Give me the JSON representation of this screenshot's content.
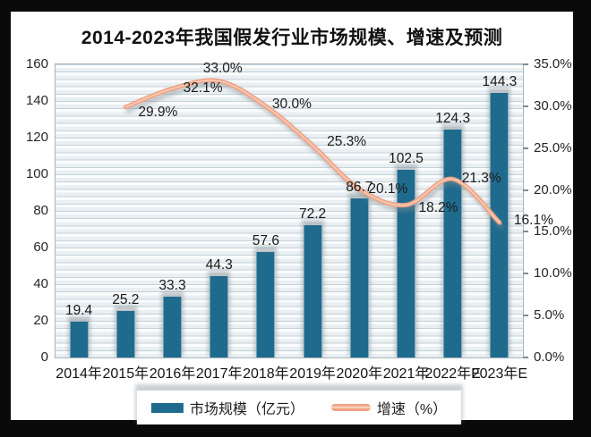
{
  "chart": {
    "title": "2014-2023年我国假发行业市场规模、增速及预测",
    "legend": [
      {
        "label": "市场规模（亿元）",
        "marker": "bar-swatch",
        "color": "#1f6b8e"
      },
      {
        "label": "增速（%）",
        "marker": "line-swatch",
        "color": "#efa287"
      }
    ]
  },
  "chart_data": {
    "type": "bar+line",
    "title": "2014-2023年我国假发行业市场规模、增速及预测",
    "categories": [
      "2014年",
      "2015年",
      "2016年",
      "2017年",
      "2018年",
      "2019年",
      "2020年",
      "2021年",
      "2022年E",
      "2023年E"
    ],
    "series": [
      {
        "name": "市场规模（亿元）",
        "type": "bar",
        "axis": "left",
        "color": "#1f6b8e",
        "values": [
          19.4,
          25.2,
          33.3,
          44.3,
          57.6,
          72.2,
          86.7,
          102.5,
          124.3,
          144.3
        ],
        "labels": [
          "19.4",
          "25.2",
          "33.3",
          "44.3",
          "57.6",
          "72.2",
          "86.7",
          "102.5",
          "124.3",
          "144.3"
        ]
      },
      {
        "name": "增速（%）",
        "type": "line",
        "axis": "right",
        "color": "#efa287",
        "values": [
          null,
          29.9,
          32.1,
          33.0,
          30.0,
          25.3,
          20.1,
          18.2,
          21.3,
          16.1
        ],
        "labels": [
          null,
          "29.9%",
          "32.1%",
          "33.0%",
          "30.0%",
          "25.3%",
          "20.1%",
          "18.2%",
          "21.3%",
          "16.1%"
        ],
        "label_offsets": [
          null,
          [
            36,
            6
          ],
          [
            34,
            0
          ],
          [
            4,
            -14
          ],
          [
            29,
            -2
          ],
          [
            38,
            -4
          ],
          [
            32,
            0
          ],
          [
            36,
            4
          ],
          [
            32,
            0
          ],
          [
            38,
            -2
          ]
        ]
      }
    ],
    "left_axis": {
      "min": 0,
      "max": 160,
      "step": 20,
      "tick_labels": [
        "0",
        "20",
        "40",
        "60",
        "80",
        "100",
        "120",
        "140",
        "160"
      ]
    },
    "right_axis": {
      "min": 0,
      "max": 35,
      "step": 5,
      "tick_labels": [
        "0.0%",
        "5.0%",
        "10.0%",
        "15.0%",
        "20.0%",
        "25.0%",
        "30.0%",
        "35.0%"
      ]
    },
    "grid": "horizontal-minor-on",
    "legend_position": "bottom"
  }
}
